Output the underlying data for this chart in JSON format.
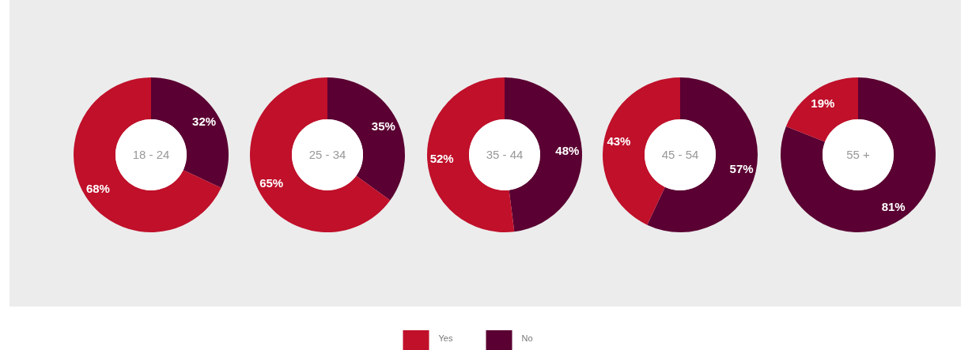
{
  "chart_data": [
    {
      "type": "donut",
      "title": "18 - 24",
      "categories": [
        "Yes",
        "No"
      ],
      "values": [
        68,
        32
      ],
      "colors": [
        "#c0102a",
        "#5a0032"
      ],
      "value_labels": [
        "68%",
        "32%"
      ],
      "legend": "bottom"
    },
    {
      "type": "donut",
      "title": "25 - 34",
      "categories": [
        null,
        null
      ],
      "values": [
        65,
        35
      ],
      "colors": [
        "#c0102a",
        "#5a0032"
      ],
      "value_labels": [
        "65%",
        "35%"
      ]
    },
    {
      "type": "donut",
      "title": "35 - 44",
      "categories": [
        null,
        null
      ],
      "values": [
        52,
        48
      ],
      "colors": [
        "#c0102a",
        "#5a0032"
      ],
      "value_labels": [
        "52%",
        "48%"
      ]
    },
    {
      "type": "donut",
      "title": "45 - 54",
      "categories": [
        null,
        null
      ],
      "values": [
        43,
        57
      ],
      "colors": [
        "#c0102a",
        "#5a0032"
      ],
      "value_labels": [
        "43%",
        "57%"
      ]
    },
    {
      "type": "donut",
      "title": "55 +",
      "categories": [
        null,
        null
      ],
      "values": [
        19,
        81
      ],
      "colors": [
        "#c0102a",
        "#5a0032"
      ],
      "value_labels": [
        "19%",
        "81%"
      ]
    }
  ]
}
